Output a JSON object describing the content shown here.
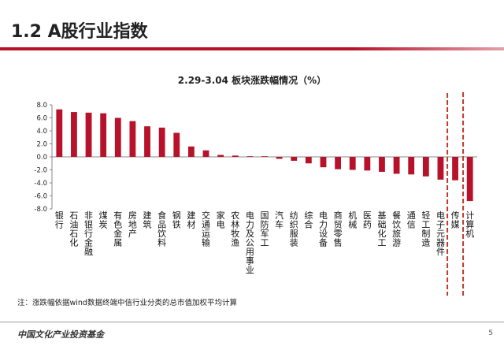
{
  "header": {
    "title": "1.2 A股行业指数"
  },
  "footnote": "注：涨跌幅依据wind数据终端中信行业分类的总市值加权平均计算",
  "footer": {
    "logo_text": "中国文化产业投资基金",
    "page_number": "5"
  },
  "colors": {
    "bar": "#b8122a",
    "accent_rule": "#b8122a",
    "highlight_box": "#c0392b"
  },
  "highlight": {
    "categories": [
      "传媒"
    ],
    "style": "dashed-red-box"
  },
  "chart_data": {
    "type": "bar",
    "title": "2.29-3.04 板块涨跌幅情况（%）",
    "xlabel": "",
    "ylabel": "",
    "ylim": [
      -8.0,
      8.0
    ],
    "yticks": [
      "8.0",
      "6.0",
      "4.0",
      "2.0",
      "0.0",
      "-2.0",
      "-4.0",
      "-6.0",
      "-8.0"
    ],
    "grid": false,
    "legend": "none",
    "categories": [
      "银行",
      "石油石化",
      "非银行金融",
      "煤炭",
      "有色金属",
      "房地产",
      "建筑",
      "食品饮料",
      "钢铁",
      "建材",
      "交通运输",
      "家电",
      "农林牧渔",
      "电力及公用事业",
      "国防军工",
      "汽车",
      "纺织服装",
      "综合",
      "电力设备",
      "商贸零售",
      "机械",
      "医药",
      "基础化工",
      "餐饮旅游",
      "通信",
      "轻工制造",
      "电子元器件",
      "传媒",
      "计算机"
    ],
    "values": [
      7.3,
      6.9,
      6.8,
      6.7,
      6.0,
      5.5,
      4.7,
      4.5,
      3.7,
      1.6,
      1.0,
      0.3,
      0.2,
      0.1,
      0.1,
      -0.3,
      -0.6,
      -1.0,
      -1.6,
      -1.9,
      -2.0,
      -2.1,
      -2.3,
      -2.6,
      -2.7,
      -3.0,
      -3.5,
      -3.6,
      -6.8
    ]
  }
}
